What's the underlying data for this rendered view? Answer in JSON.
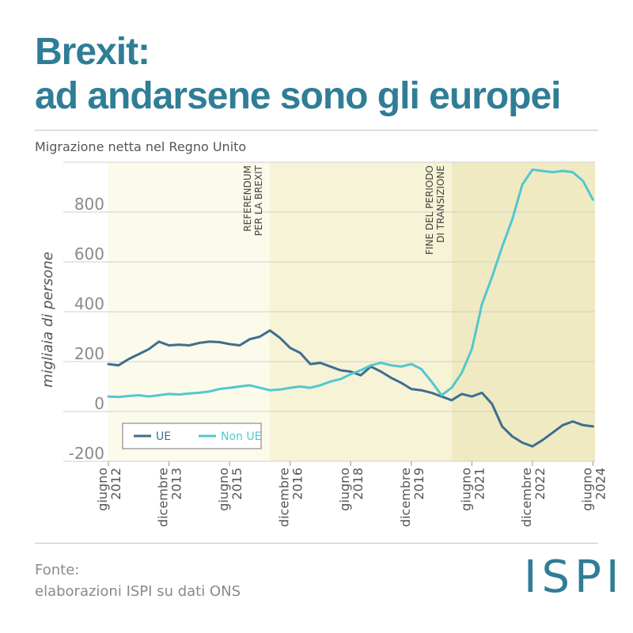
{
  "header": {
    "title_line1": "Brexit:",
    "title_line2": "ad andarsene sono gli europei",
    "subtitle": "Migrazione netta nel Regno Unito"
  },
  "footer": {
    "source_label": "Fonte:",
    "source_text": "elaborazioni ISPI su dati ONS",
    "logo": "ISPI"
  },
  "colors": {
    "title": "#2f7d96",
    "ue": "#3d6e8f",
    "non_ue": "#52c7cf",
    "band_light": "#fbfaeb",
    "band_mid": "#f6f3d6",
    "band_dark": "#efeac2"
  },
  "chart_data": {
    "type": "line",
    "ylabel": "migliaia di persone",
    "ylim": [
      -200,
      1000
    ],
    "yticks": [
      -200,
      0,
      200,
      400,
      600,
      800
    ],
    "xrange": [
      2012.45,
      2024.5
    ],
    "xticks": [
      {
        "x": 2012.45,
        "line1": "giugno",
        "line2": "2012"
      },
      {
        "x": 2013.95,
        "line1": "dicembre",
        "line2": "2013"
      },
      {
        "x": 2015.45,
        "line1": "giugno",
        "line2": "2015"
      },
      {
        "x": 2016.95,
        "line1": "dicembre",
        "line2": "2016"
      },
      {
        "x": 2018.45,
        "line1": "giugno",
        "line2": "2018"
      },
      {
        "x": 2019.95,
        "line1": "dicembre",
        "line2": "2019"
      },
      {
        "x": 2021.45,
        "line1": "giugno",
        "line2": "2021"
      },
      {
        "x": 2022.95,
        "line1": "dicembre",
        "line2": "2022"
      },
      {
        "x": 2024.45,
        "line1": "giugno",
        "line2": "2024"
      }
    ],
    "periods": [
      {
        "from": 2012.45,
        "to": 2016.45,
        "shade": "light"
      },
      {
        "from": 2016.45,
        "to": 2020.95,
        "shade": "mid"
      },
      {
        "from": 2020.95,
        "to": 2024.5,
        "shade": "dark"
      }
    ],
    "annotations": [
      {
        "x": 2016.45,
        "line1": "REFERENDUM",
        "line2": "PER LA BREXIT"
      },
      {
        "x": 2020.95,
        "line1": "FINE DEL PERIODO",
        "line2": "DI TRANSIZIONE"
      }
    ],
    "legend_position": "bottom-left",
    "series": [
      {
        "name": "UE",
        "color": "#3d6e8f",
        "x": [
          2012.45,
          2012.7,
          2012.95,
          2013.2,
          2013.45,
          2013.7,
          2013.95,
          2014.2,
          2014.45,
          2014.7,
          2014.95,
          2015.2,
          2015.45,
          2015.7,
          2015.95,
          2016.2,
          2016.45,
          2016.7,
          2016.95,
          2017.2,
          2017.45,
          2017.7,
          2017.95,
          2018.2,
          2018.45,
          2018.7,
          2018.95,
          2019.2,
          2019.45,
          2019.7,
          2019.95,
          2020.2,
          2020.45,
          2020.7,
          2020.95,
          2021.2,
          2021.45,
          2021.7,
          2021.95,
          2022.2,
          2022.45,
          2022.7,
          2022.95,
          2023.2,
          2023.45,
          2023.7,
          2023.95,
          2024.2,
          2024.45
        ],
        "y": [
          190,
          185,
          210,
          230,
          250,
          280,
          265,
          268,
          265,
          275,
          280,
          278,
          270,
          265,
          290,
          300,
          325,
          295,
          255,
          235,
          190,
          195,
          180,
          165,
          160,
          145,
          180,
          160,
          135,
          115,
          90,
          85,
          75,
          60,
          45,
          70,
          60,
          75,
          30,
          -60,
          -100,
          -125,
          -140,
          -115,
          -85,
          -55,
          -40,
          -55,
          -60
        ]
      },
      {
        "name": "Non UE",
        "color": "#52c7cf",
        "x": [
          2012.45,
          2012.7,
          2012.95,
          2013.2,
          2013.45,
          2013.7,
          2013.95,
          2014.2,
          2014.45,
          2014.7,
          2014.95,
          2015.2,
          2015.45,
          2015.7,
          2015.95,
          2016.2,
          2016.45,
          2016.7,
          2016.95,
          2017.2,
          2017.45,
          2017.7,
          2017.95,
          2018.2,
          2018.45,
          2018.7,
          2018.95,
          2019.2,
          2019.45,
          2019.7,
          2019.95,
          2020.2,
          2020.45,
          2020.7,
          2020.95,
          2021.2,
          2021.45,
          2021.7,
          2021.95,
          2022.2,
          2022.45,
          2022.7,
          2022.95,
          2023.2,
          2023.45,
          2023.7,
          2023.95,
          2024.2,
          2024.45
        ],
        "y": [
          60,
          58,
          62,
          65,
          60,
          65,
          70,
          68,
          72,
          75,
          80,
          90,
          95,
          100,
          105,
          95,
          85,
          88,
          95,
          100,
          95,
          105,
          120,
          130,
          150,
          165,
          185,
          195,
          185,
          180,
          190,
          170,
          120,
          65,
          95,
          155,
          250,
          430,
          540,
          660,
          770,
          910,
          970,
          965,
          960,
          965,
          960,
          925,
          850
        ]
      }
    ]
  }
}
